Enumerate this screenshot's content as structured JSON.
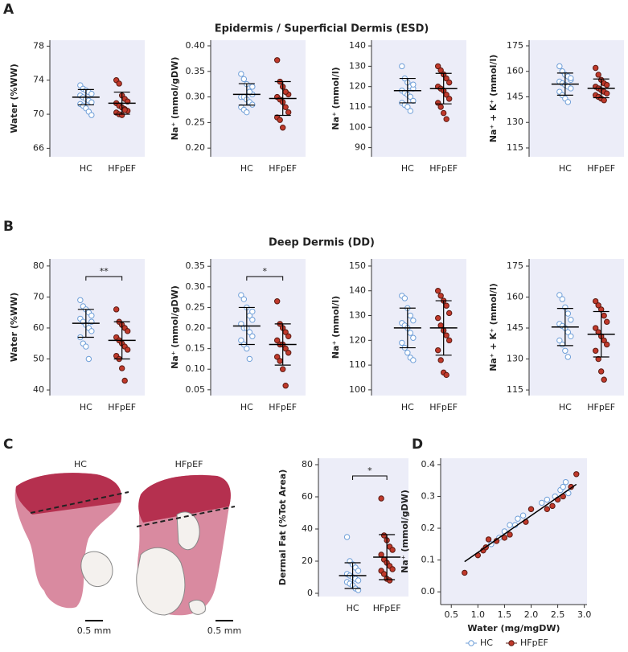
{
  "panel_labels": [
    "A",
    "B",
    "C",
    "D"
  ],
  "sections": [
    "Epidermis / Superficial Dermis (ESD)",
    "Deep Dermis (DD)"
  ],
  "histology": {
    "labels": [
      "HC",
      "HFpEF"
    ],
    "scale_bar": "0.5 mm"
  },
  "chart_data": [
    {
      "type": "strip",
      "ylabel": "Water (%WW)",
      "categories": [
        "HC",
        "HFpEF"
      ],
      "ylim": [
        65,
        78.7
      ],
      "yticks": [
        66,
        70,
        74,
        78
      ],
      "series": [
        {
          "color": "#6f9fd8",
          "hollow": true,
          "values": [
            73.4,
            73.0,
            72.8,
            72.6,
            72.4,
            72.2,
            72.0,
            71.8,
            71.6,
            71.4,
            71.2,
            71.0,
            70.7,
            70.3,
            69.9
          ],
          "mean": 72.0,
          "sd": 0.9
        },
        {
          "color": "#c0392b",
          "hollow": false,
          "values": [
            74.0,
            73.6,
            72.2,
            71.8,
            71.5,
            71.3,
            71.0,
            70.8,
            70.6,
            70.4,
            70.2,
            70.0,
            69.9,
            70.5
          ],
          "mean": 71.3,
          "sd": 1.3
        }
      ]
    },
    {
      "type": "strip",
      "ylabel": "Na⁺ (mmol/gDW)",
      "categories": [
        "HC",
        "HFpEF"
      ],
      "ylim": [
        0.183,
        0.411
      ],
      "yticks": [
        {
          "value": 0.2,
          "label": "0.20"
        },
        0.25,
        {
          "value": 0.3,
          "label": "0.30"
        },
        0.35,
        {
          "value": 0.4,
          "label": "0.40"
        }
      ],
      "series": [
        {
          "color": "#6f9fd8",
          "hollow": true,
          "values": [
            0.345,
            0.335,
            0.325,
            0.31,
            0.305,
            0.3,
            0.3,
            0.295,
            0.29,
            0.285,
            0.28,
            0.275,
            0.27,
            0.31,
            0.32
          ],
          "mean": 0.305,
          "sd": 0.021
        },
        {
          "color": "#c0392b",
          "hollow": false,
          "values": [
            0.372,
            0.33,
            0.32,
            0.31,
            0.305,
            0.3,
            0.295,
            0.29,
            0.28,
            0.27,
            0.26,
            0.255,
            0.24,
            0.31
          ],
          "mean": 0.297,
          "sd": 0.033
        }
      ]
    },
    {
      "type": "strip",
      "ylabel": "Na⁺ (mmol/l)",
      "categories": [
        "HC",
        "HFpEF"
      ],
      "ylim": [
        85.5,
        142.8
      ],
      "yticks": [
        90,
        100,
        110,
        120,
        130,
        140
      ],
      "series": [
        {
          "color": "#6f9fd8",
          "hollow": true,
          "values": [
            130,
            124,
            122,
            120,
            119,
            118,
            117,
            116,
            115,
            113,
            112,
            111,
            110,
            108,
            121
          ],
          "mean": 118,
          "sd": 6
        },
        {
          "color": "#c0392b",
          "hollow": false,
          "values": [
            130,
            128,
            126,
            124,
            122,
            120,
            119,
            118,
            116,
            114,
            112,
            110,
            107,
            104
          ],
          "mean": 119,
          "sd": 7.5
        }
      ]
    },
    {
      "type": "strip",
      "ylabel": "Na⁺ + K⁺ (mmol/l)",
      "categories": [
        "HC",
        "HFpEF"
      ],
      "ylim": [
        109.8,
        178.3
      ],
      "yticks": [
        115,
        130,
        145,
        160,
        175
      ],
      "series": [
        {
          "color": "#6f9fd8",
          "hollow": true,
          "values": [
            163,
            160,
            158,
            157,
            155,
            154,
            153,
            152,
            151,
            150,
            148,
            146,
            144,
            142,
            156
          ],
          "mean": 152.5,
          "sd": 6.5
        },
        {
          "color": "#c0392b",
          "hollow": false,
          "values": [
            162,
            158,
            155,
            153,
            152,
            151,
            150,
            149,
            148,
            147,
            146,
            145,
            144,
            143
          ],
          "mean": 150,
          "sd": 5.5
        }
      ]
    },
    {
      "type": "strip",
      "ylabel": "Water (%WW)",
      "categories": [
        "HC",
        "HFpEF"
      ],
      "ylim": [
        38.2,
        82.3
      ],
      "yticks": [
        40,
        50,
        60,
        70,
        80
      ],
      "significance": "**",
      "series": [
        {
          "color": "#6f9fd8",
          "hollow": true,
          "values": [
            69,
            67,
            66,
            65,
            64,
            63,
            62,
            61,
            60,
            59,
            57,
            55,
            54,
            50,
            62
          ],
          "mean": 61.5,
          "sd": 4.5
        },
        {
          "color": "#c0392b",
          "hollow": false,
          "values": [
            66,
            62,
            61,
            60,
            59,
            57,
            56,
            55,
            54,
            53,
            51,
            50,
            47,
            43
          ],
          "mean": 56,
          "sd": 6
        }
      ]
    },
    {
      "type": "strip",
      "ylabel": "Na⁺ (mmol/gDW)",
      "categories": [
        "HC",
        "HFpEF"
      ],
      "ylim": [
        0.036,
        0.368
      ],
      "yticks": [
        0.05,
        {
          "value": 0.1,
          "label": "0.10"
        },
        0.15,
        {
          "value": 0.2,
          "label": "0.20"
        },
        0.25,
        {
          "value": 0.3,
          "label": "0.30"
        },
        0.35
      ],
      "significance": "*",
      "series": [
        {
          "color": "#6f9fd8",
          "hollow": true,
          "values": [
            0.28,
            0.27,
            0.25,
            0.23,
            0.22,
            0.21,
            0.2,
            0.2,
            0.19,
            0.18,
            0.17,
            0.16,
            0.15,
            0.125,
            0.24
          ],
          "mean": 0.205,
          "sd": 0.045
        },
        {
          "color": "#c0392b",
          "hollow": false,
          "values": [
            0.265,
            0.21,
            0.2,
            0.19,
            0.18,
            0.17,
            0.16,
            0.16,
            0.15,
            0.14,
            0.13,
            0.12,
            0.1,
            0.06
          ],
          "mean": 0.16,
          "sd": 0.05
        }
      ]
    },
    {
      "type": "strip",
      "ylabel": "Na⁺ (mmol/l)",
      "categories": [
        "HC",
        "HFpEF"
      ],
      "ylim": [
        97.7,
        152.9
      ],
      "yticks": [
        100,
        110,
        120,
        130,
        140,
        150
      ],
      "series": [
        {
          "color": "#6f9fd8",
          "hollow": true,
          "values": [
            138,
            137,
            133,
            130,
            128,
            127,
            126,
            125,
            123,
            121,
            119,
            117,
            115,
            113,
            112
          ],
          "mean": 125,
          "sd": 8
        },
        {
          "color": "#c0392b",
          "hollow": false,
          "values": [
            140,
            138,
            136,
            134,
            131,
            129,
            126,
            124,
            122,
            120,
            116,
            112,
            107,
            106
          ],
          "mean": 125,
          "sd": 11
        }
      ]
    },
    {
      "type": "strip",
      "ylabel": "Na⁺ + K⁺ (mmol/l)",
      "categories": [
        "HC",
        "HFpEF"
      ],
      "ylim": [
        112.3,
        178.5
      ],
      "yticks": [
        115,
        130,
        145,
        160,
        175
      ],
      "series": [
        {
          "color": "#6f9fd8",
          "hollow": true,
          "values": [
            161,
            159,
            155,
            152,
            149,
            147,
            146,
            145,
            143,
            141,
            139,
            137,
            134,
            131
          ],
          "mean": 145.5,
          "sd": 9
        },
        {
          "color": "#c0392b",
          "hollow": false,
          "values": [
            158,
            156,
            154,
            151,
            148,
            145,
            143,
            141,
            139,
            137,
            134,
            130,
            124,
            120
          ],
          "mean": 142,
          "sd": 11
        }
      ]
    },
    {
      "type": "strip",
      "ylabel": "Dermal Fat (%Tot Area)",
      "categories": [
        "HC",
        "HFpEF"
      ],
      "ylim": [
        -2,
        84
      ],
      "yticks": [
        0,
        20,
        40,
        60,
        80
      ],
      "significance": "*",
      "series": [
        {
          "color": "#6f9fd8",
          "hollow": true,
          "values": [
            35,
            20,
            18,
            16,
            14,
            12,
            11,
            10,
            9,
            8,
            7,
            6,
            5,
            3,
            2
          ],
          "mean": 11,
          "sd": 8
        },
        {
          "color": "#c0392b",
          "hollow": false,
          "values": [
            59,
            36,
            33,
            29,
            27,
            24,
            21,
            19,
            17,
            15,
            14,
            12,
            9,
            8
          ],
          "mean": 22.5,
          "sd": 14
        }
      ]
    },
    {
      "type": "scatter",
      "xlabel": "Water (mg/mgDW)",
      "ylabel": "Na⁺ (mmol/gDW)",
      "xlim": [
        0.3,
        3.05
      ],
      "ylim": [
        -0.04,
        0.42
      ],
      "xticks": [
        0.5,
        {
          "value": 1,
          "label": "1.0"
        },
        1.5,
        {
          "value": 2,
          "label": "2.0"
        },
        2.5,
        {
          "value": 3,
          "label": "3.0"
        }
      ],
      "yticks": [
        {
          "value": 0,
          "label": "0.0"
        },
        0.1,
        0.2,
        0.3,
        0.4
      ],
      "legend": "bottom",
      "fit": {
        "x": [
          0.75,
          2.85
        ],
        "y": [
          0.095,
          0.338
        ]
      },
      "series": [
        {
          "name": "HC",
          "color": "#6f9fd8",
          "hollow": true,
          "x": [
            1.25,
            1.4,
            1.5,
            1.6,
            1.7,
            1.75,
            1.85,
            2.0,
            2.2,
            2.3,
            2.45,
            2.55,
            2.6,
            2.65,
            2.7
          ],
          "values": [
            0.15,
            0.17,
            0.19,
            0.21,
            0.21,
            0.23,
            0.24,
            0.26,
            0.28,
            0.29,
            0.3,
            0.32,
            0.33,
            0.345,
            0.31
          ]
        },
        {
          "name": "HFpEF",
          "color": "#c0392b",
          "hollow": false,
          "x": [
            0.75,
            1.0,
            1.1,
            1.15,
            1.2,
            1.35,
            1.5,
            1.6,
            1.9,
            2.0,
            2.3,
            2.4,
            2.5,
            2.6,
            2.75,
            2.85
          ],
          "values": [
            0.06,
            0.115,
            0.13,
            0.14,
            0.165,
            0.16,
            0.17,
            0.18,
            0.22,
            0.26,
            0.26,
            0.27,
            0.29,
            0.3,
            0.33,
            0.37
          ]
        }
      ]
    }
  ]
}
